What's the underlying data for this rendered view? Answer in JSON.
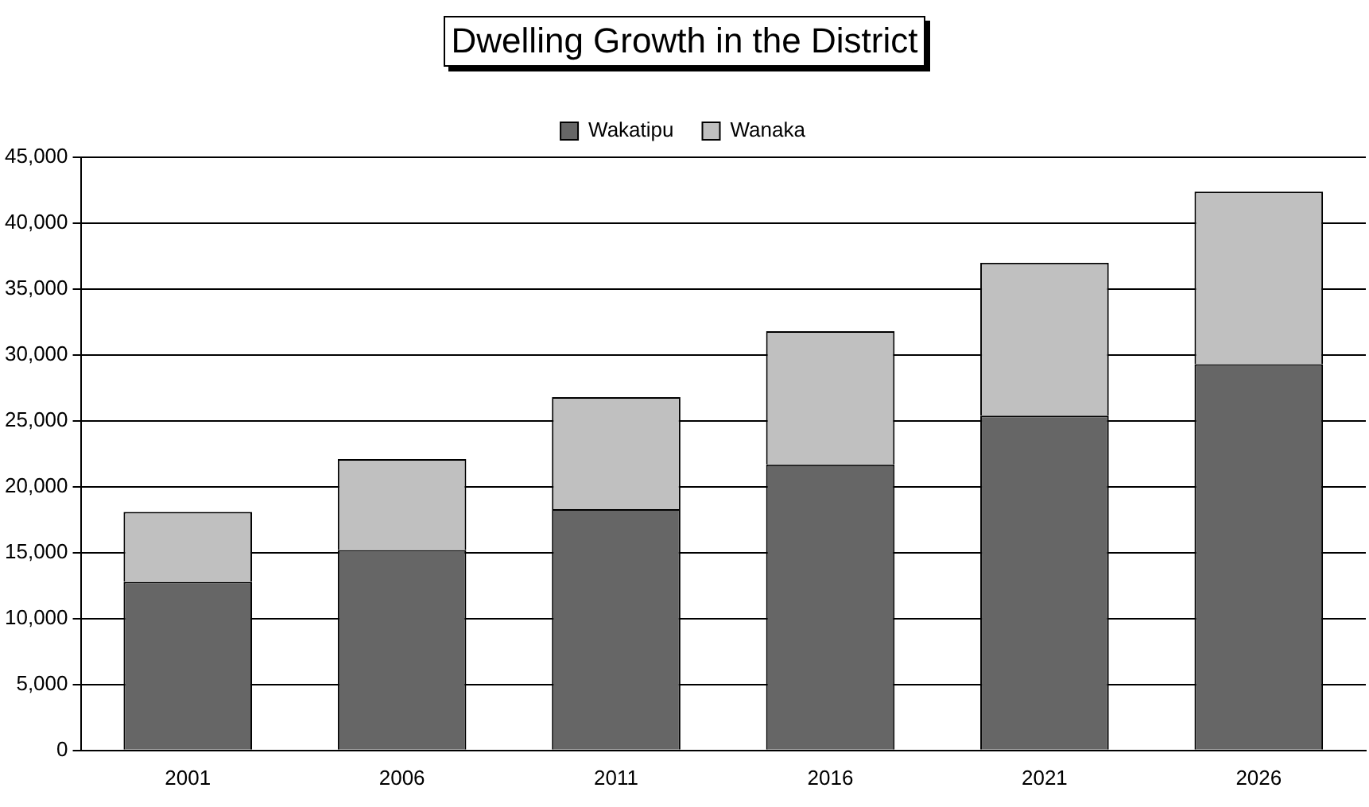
{
  "chart_data": {
    "type": "bar",
    "title": "Dwelling Growth in the District",
    "categories": [
      "2001",
      "2006",
      "2011",
      "2016",
      "2021",
      "2026"
    ],
    "series": [
      {
        "name": "Wakatipu",
        "color": "#666666",
        "values": [
          12800,
          15200,
          18300,
          21700,
          25400,
          29300
        ]
      },
      {
        "name": "Wanaka",
        "color": "#c0c0c0",
        "values": [
          5300,
          6900,
          8500,
          10100,
          11600,
          13100
        ]
      }
    ],
    "stacked": true,
    "ylim": [
      0,
      45000
    ],
    "yticks": [
      0,
      {
        "value": 5000,
        "label": "5,000"
      },
      {
        "value": 10000,
        "label": "10,000"
      },
      {
        "value": 15000,
        "label": "15,000"
      },
      {
        "value": 20000,
        "label": "20,000"
      },
      {
        "value": 25000,
        "label": "25,000"
      },
      {
        "value": 30000,
        "label": "30,000"
      },
      {
        "value": 35000,
        "label": "35,000"
      },
      {
        "value": 40000,
        "label": "40,000"
      },
      {
        "value": 45000,
        "label": "45,000"
      }
    ],
    "grid": "y",
    "legend": "top"
  }
}
